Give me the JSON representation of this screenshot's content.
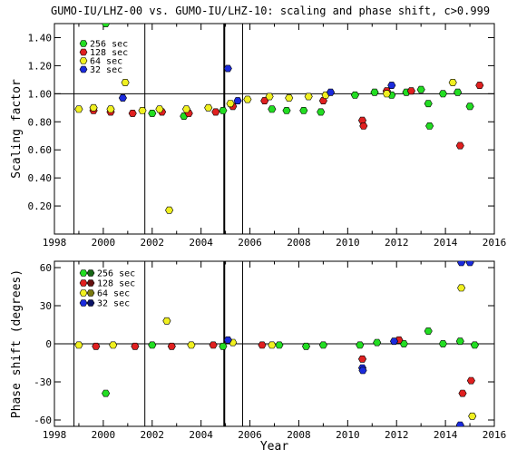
{
  "chart_data": [
    {
      "type": "scatter",
      "title": "GUMO-IU/LHZ-00 vs. GUMO-IU/LHZ-10: scaling and phase shift, c>0.999",
      "xlabel": "",
      "ylabel": "Scaling factor",
      "xlim": [
        1998,
        2016
      ],
      "ylim": [
        0,
        1.5
      ],
      "x_ticks": [
        "1998",
        "2000",
        "2002",
        "2004",
        "2006",
        "2008",
        "2010",
        "2012",
        "2014",
        "2016"
      ],
      "y_ticks": [
        "0.20",
        "0.40",
        "0.60",
        "0.80",
        "1.00",
        "1.20",
        "1.40"
      ],
      "y_tick_values": [
        0.2,
        0.4,
        0.6,
        0.8,
        1.0,
        1.2,
        1.4
      ],
      "reference_line": 1.0,
      "vertical_lines": [
        1998.8,
        2001.7,
        2004.95,
        2005.7
      ],
      "legend_position": "top-left",
      "series": [
        {
          "name": "256 sec",
          "color": "#22dd22",
          "points": [
            [
              2000.1,
              1.5
            ],
            [
              2002.0,
              0.86
            ],
            [
              2003.3,
              0.84
            ],
            [
              2004.9,
              0.88
            ],
            [
              2006.9,
              0.89
            ],
            [
              2007.5,
              0.88
            ],
            [
              2008.2,
              0.88
            ],
            [
              2008.9,
              0.87
            ],
            [
              2010.3,
              0.99
            ],
            [
              2011.1,
              1.01
            ],
            [
              2011.8,
              0.99
            ],
            [
              2012.4,
              1.01
            ],
            [
              2013.0,
              1.03
            ],
            [
              2013.3,
              0.93
            ],
            [
              2013.35,
              0.77
            ],
            [
              2013.9,
              1.0
            ],
            [
              2014.5,
              1.01
            ],
            [
              2015.0,
              0.91
            ]
          ]
        },
        {
          "name": "128 sec",
          "color": "#e02020",
          "points": [
            [
              1999.6,
              0.88
            ],
            [
              2000.3,
              0.87
            ],
            [
              2001.2,
              0.86
            ],
            [
              2002.4,
              0.87
            ],
            [
              2003.5,
              0.86
            ],
            [
              2004.6,
              0.87
            ],
            [
              2005.3,
              0.91
            ],
            [
              2006.6,
              0.95
            ],
            [
              2009.0,
              0.95
            ],
            [
              2010.6,
              0.81
            ],
            [
              2010.65,
              0.77
            ],
            [
              2011.6,
              1.02
            ],
            [
              2012.6,
              1.02
            ],
            [
              2014.6,
              0.63
            ],
            [
              2015.4,
              1.06
            ]
          ]
        },
        {
          "name": "64 sec",
          "color": "#f0f020",
          "points": [
            [
              1999.0,
              0.89
            ],
            [
              1999.6,
              0.9
            ],
            [
              2000.3,
              0.89
            ],
            [
              2000.9,
              1.08
            ],
            [
              2001.6,
              0.88
            ],
            [
              2002.3,
              0.89
            ],
            [
              2002.7,
              0.17
            ],
            [
              2003.4,
              0.89
            ],
            [
              2004.3,
              0.9
            ],
            [
              2005.2,
              0.93
            ],
            [
              2005.9,
              0.96
            ],
            [
              2006.8,
              0.98
            ],
            [
              2007.6,
              0.97
            ],
            [
              2008.4,
              0.98
            ],
            [
              2009.1,
              0.99
            ],
            [
              2011.6,
              1.0
            ],
            [
              2014.3,
              1.08
            ]
          ]
        },
        {
          "name": "32 sec",
          "color": "#1a2adc",
          "points": [
            [
              2000.8,
              0.97
            ],
            [
              2005.1,
              1.18
            ],
            [
              2005.5,
              0.95
            ],
            [
              2009.3,
              1.01
            ],
            [
              2011.8,
              1.06
            ]
          ]
        }
      ]
    },
    {
      "type": "scatter",
      "title": "",
      "xlabel": "Year",
      "ylabel": "Phase shift (degrees)",
      "xlim": [
        1998,
        2016
      ],
      "ylim": [
        -65,
        65
      ],
      "x_ticks": [
        "1998",
        "2000",
        "2002",
        "2004",
        "2006",
        "2008",
        "2010",
        "2012",
        "2014",
        "2016"
      ],
      "y_ticks": [
        "-60",
        "-30",
        "0",
        "30",
        "60"
      ],
      "y_tick_values": [
        -60,
        -30,
        0,
        30,
        60
      ],
      "reference_line": 0,
      "vertical_lines": [
        1998.8,
        2001.7,
        2004.95,
        2005.7
      ],
      "legend_position": "top-left",
      "series": [
        {
          "name": "256 sec",
          "color": "#22dd22",
          "accent": "#166616",
          "points": [
            [
              2000.1,
              -39
            ],
            [
              2002.0,
              -1
            ],
            [
              2004.9,
              -2
            ],
            [
              2007.2,
              -1
            ],
            [
              2008.3,
              -2
            ],
            [
              2009.0,
              -1
            ],
            [
              2010.5,
              -1
            ],
            [
              2011.2,
              1
            ],
            [
              2012.3,
              0
            ],
            [
              2013.3,
              10
            ],
            [
              2013.9,
              0
            ],
            [
              2014.6,
              2
            ],
            [
              2015.2,
              -1
            ]
          ]
        },
        {
          "name": "128 sec",
          "color": "#e02020",
          "accent": "#661010",
          "points": [
            [
              1999.7,
              -2
            ],
            [
              2001.3,
              -2
            ],
            [
              2002.8,
              -2
            ],
            [
              2004.5,
              -1
            ],
            [
              2006.5,
              -1
            ],
            [
              2010.6,
              -12
            ],
            [
              2012.1,
              3
            ],
            [
              2014.7,
              -39
            ],
            [
              2015.05,
              -29
            ]
          ]
        },
        {
          "name": "64 sec",
          "color": "#f0f020",
          "accent": "#7a7a10",
          "points": [
            [
              1999.0,
              -1
            ],
            [
              2000.4,
              -1
            ],
            [
              2002.6,
              18
            ],
            [
              2003.6,
              -1
            ],
            [
              2005.3,
              1
            ],
            [
              2006.9,
              -1
            ],
            [
              2014.65,
              44
            ],
            [
              2015.1,
              -57
            ]
          ]
        },
        {
          "name": "32 sec",
          "color": "#1a2adc",
          "accent": "#0a1266",
          "points": [
            [
              2005.1,
              3
            ],
            [
              2010.6,
              -19
            ],
            [
              2010.62,
              -21
            ],
            [
              2011.9,
              2
            ],
            [
              2014.65,
              64
            ],
            [
              2015.0,
              64
            ],
            [
              2014.6,
              -64
            ]
          ]
        }
      ]
    }
  ]
}
